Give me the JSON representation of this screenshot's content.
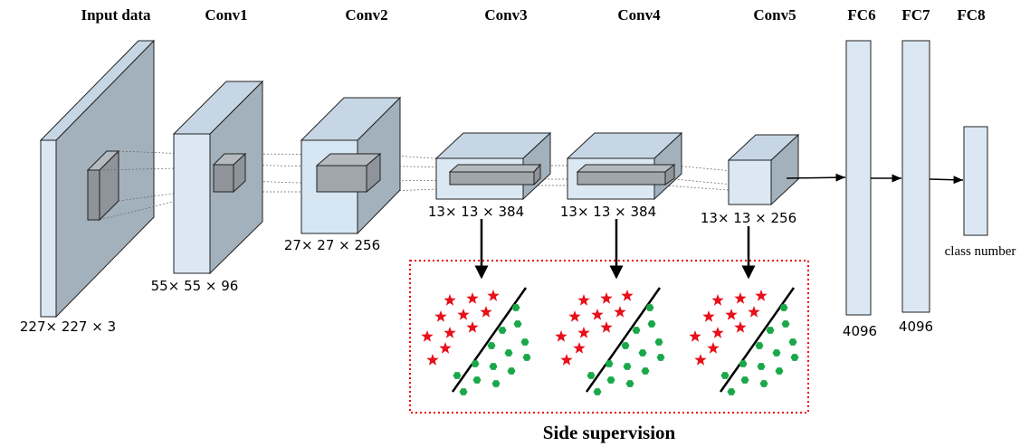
{
  "layers": [
    {
      "name": "Input data",
      "size": "227× 227 × 3"
    },
    {
      "name": "Conv1",
      "size": "55× 55 × 96"
    },
    {
      "name": "Conv2",
      "size": "27× 27 × 256"
    },
    {
      "name": "Conv3",
      "size": "13× 13 × 384"
    },
    {
      "name": "Conv4",
      "size": "13× 13 × 384"
    },
    {
      "name": "Conv5",
      "size": "13× 13 × 256"
    },
    {
      "name": "FC6",
      "size": "4096"
    },
    {
      "name": "FC7",
      "size": "4096"
    },
    {
      "name": "FC8",
      "size": "class number"
    }
  ],
  "side_supervision": {
    "label": "Side supervision"
  }
}
